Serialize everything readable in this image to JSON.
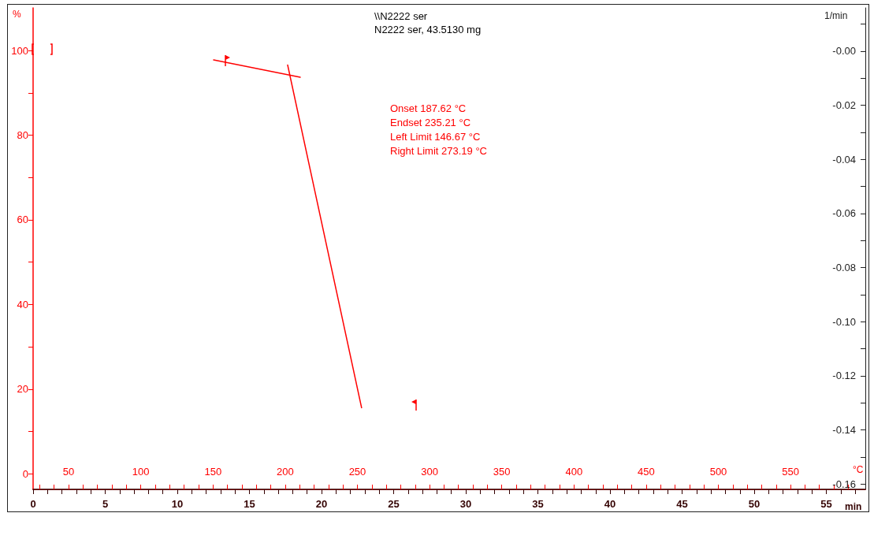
{
  "chart_data": {
    "type": "line",
    "title": "\\\\N2222 ser",
    "subtitle": "N2222 ser, 43.5130 mg",
    "xlabel": "°C",
    "x2label": "min",
    "ylabel": "%",
    "y2label": "1/min",
    "series": [
      {
        "x": [
          150.4,
          210.4
        ],
        "values": [
          97.8,
          93.7
        ],
        "color": "#ff0000"
      },
      {
        "x": [
          201.7,
          252.9
        ],
        "values": [
          96.6,
          15.6
        ],
        "color": "#ff0000"
      }
    ],
    "marker": "none",
    "line_style": "solid",
    "grid": false,
    "annotations": [
      "Onset 187.62 °C",
      "Endset 235.21 °C",
      "Left Limit 146.67 °C",
      "Right Limit 273.19 °C"
    ],
    "xlim": [
      25.4,
      601.8
    ],
    "xticks": [
      {
        "value": 30,
        "label": null
      },
      {
        "value": 40,
        "label": null
      },
      50,
      {
        "value": 60,
        "label": null
      },
      {
        "value": 70,
        "label": null
      },
      {
        "value": 80,
        "label": null
      },
      {
        "value": 90,
        "label": null
      },
      100,
      {
        "value": 110,
        "label": null
      },
      {
        "value": 120,
        "label": null
      },
      {
        "value": 130,
        "label": null
      },
      {
        "value": 140,
        "label": null
      },
      150,
      {
        "value": 160,
        "label": null
      },
      {
        "value": 170,
        "label": null
      },
      {
        "value": 180,
        "label": null
      },
      {
        "value": 190,
        "label": null
      },
      200,
      {
        "value": 210,
        "label": null
      },
      {
        "value": 220,
        "label": null
      },
      {
        "value": 230,
        "label": null
      },
      {
        "value": 240,
        "label": null
      },
      250,
      {
        "value": 260,
        "label": null
      },
      {
        "value": 270,
        "label": null
      },
      {
        "value": 280,
        "label": null
      },
      {
        "value": 290,
        "label": null
      },
      300,
      {
        "value": 310,
        "label": null
      },
      {
        "value": 320,
        "label": null
      },
      {
        "value": 330,
        "label": null
      },
      {
        "value": 340,
        "label": null
      },
      350,
      {
        "value": 360,
        "label": null
      },
      {
        "value": 370,
        "label": null
      },
      {
        "value": 380,
        "label": null
      },
      {
        "value": 390,
        "label": null
      },
      400,
      {
        "value": 410,
        "label": null
      },
      {
        "value": 420,
        "label": null
      },
      {
        "value": 430,
        "label": null
      },
      {
        "value": 440,
        "label": null
      },
      450,
      {
        "value": 460,
        "label": null
      },
      {
        "value": 470,
        "label": null
      },
      {
        "value": 480,
        "label": null
      },
      {
        "value": 490,
        "label": null
      },
      500,
      {
        "value": 510,
        "label": null
      },
      {
        "value": 520,
        "label": null
      },
      {
        "value": 530,
        "label": null
      },
      {
        "value": 540,
        "label": null
      },
      550,
      {
        "value": 560,
        "label": null
      },
      {
        "value": 570,
        "label": null
      },
      {
        "value": 580,
        "label": null
      },
      {
        "value": 590,
        "label": null
      }
    ],
    "x2lim": [
      0,
      57.7
    ],
    "x2ticks": [
      0,
      {
        "value": 1,
        "label": null
      },
      {
        "value": 2,
        "label": null
      },
      {
        "value": 3,
        "label": null
      },
      {
        "value": 4,
        "label": null
      },
      5,
      {
        "value": 6,
        "label": null
      },
      {
        "value": 7,
        "label": null
      },
      {
        "value": 8,
        "label": null
      },
      {
        "value": 9,
        "label": null
      },
      10,
      {
        "value": 11,
        "label": null
      },
      {
        "value": 12,
        "label": null
      },
      {
        "value": 13,
        "label": null
      },
      {
        "value": 14,
        "label": null
      },
      15,
      {
        "value": 16,
        "label": null
      },
      {
        "value": 17,
        "label": null
      },
      {
        "value": 18,
        "label": null
      },
      {
        "value": 19,
        "label": null
      },
      20,
      {
        "value": 21,
        "label": null
      },
      {
        "value": 22,
        "label": null
      },
      {
        "value": 23,
        "label": null
      },
      {
        "value": 24,
        "label": null
      },
      25,
      {
        "value": 26,
        "label": null
      },
      {
        "value": 27,
        "label": null
      },
      {
        "value": 28,
        "label": null
      },
      {
        "value": 29,
        "label": null
      },
      30,
      {
        "value": 31,
        "label": null
      },
      {
        "value": 32,
        "label": null
      },
      {
        "value": 33,
        "label": null
      },
      {
        "value": 34,
        "label": null
      },
      35,
      {
        "value": 36,
        "label": null
      },
      {
        "value": 37,
        "label": null
      },
      {
        "value": 38,
        "label": null
      },
      {
        "value": 39,
        "label": null
      },
      40,
      {
        "value": 41,
        "label": null
      },
      {
        "value": 42,
        "label": null
      },
      {
        "value": 43,
        "label": null
      },
      {
        "value": 44,
        "label": null
      },
      45,
      {
        "value": 46,
        "label": null
      },
      {
        "value": 47,
        "label": null
      },
      {
        "value": 48,
        "label": null
      },
      {
        "value": 49,
        "label": null
      },
      50,
      {
        "value": 51,
        "label": null
      },
      {
        "value": 52,
        "label": null
      },
      {
        "value": 53,
        "label": null
      },
      {
        "value": 54,
        "label": null
      },
      55,
      {
        "value": 56,
        "label": null
      },
      {
        "value": 57,
        "label": null
      }
    ],
    "ylim": [
      -3.7,
      110.1
    ],
    "yticks": [
      0,
      {
        "value": 10,
        "label": null
      },
      20,
      {
        "value": 30,
        "label": null
      },
      40,
      {
        "value": 50,
        "label": null
      },
      60,
      {
        "value": 70,
        "label": null
      },
      80,
      {
        "value": 90,
        "label": null
      },
      100
    ],
    "y2lim": [
      -0.162,
      0.016
    ],
    "y2ticks": [
      {
        "value": 0.01,
        "label": null
      },
      {
        "value": 0,
        "label": "-0.00"
      },
      {
        "value": -0.01,
        "label": null
      },
      -0.02,
      {
        "value": -0.03,
        "label": null
      },
      -0.04,
      {
        "value": -0.05,
        "label": null
      },
      -0.06,
      {
        "value": -0.07,
        "label": null
      },
      -0.08,
      {
        "value": -0.09,
        "label": null
      },
      {
        "value": -0.1,
        "label": "-0.10"
      },
      {
        "value": -0.11,
        "label": null
      },
      -0.12,
      {
        "value": -0.13,
        "label": null
      },
      -0.14,
      {
        "value": -0.15,
        "label": null
      },
      -0.16
    ]
  }
}
